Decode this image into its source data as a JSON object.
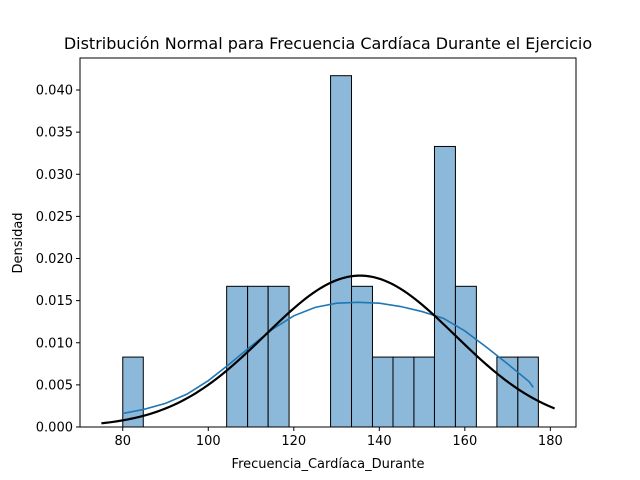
{
  "chart_data": {
    "type": "bar",
    "subtype": "histogram-with-density",
    "title": "Distribución Normal para Frecuencia Cardíaca Durante el Ejercicio",
    "xlabel": "Frecuencia_Cardíaca_Durante",
    "ylabel": "Densidad",
    "xlim": [
      70,
      186
    ],
    "ylim": [
      0,
      0.0438
    ],
    "xticks": [
      80,
      100,
      120,
      140,
      160,
      180
    ],
    "yticks": [
      0.0,
      0.005,
      0.01,
      0.015,
      0.02,
      0.025,
      0.03,
      0.035,
      0.04
    ],
    "ytick_labels": [
      "0.000",
      "0.005",
      "0.010",
      "0.015",
      "0.020",
      "0.025",
      "0.030",
      "0.035",
      "0.040"
    ],
    "grid": false,
    "colors": {
      "bar_fill": "#8cb8d9",
      "bar_edge": "#000000",
      "kde_line": "#1f77b4",
      "normal_line": "#000000"
    },
    "bins": [
      {
        "x0": 80.0,
        "x1": 84.8,
        "density": 0.0083
      },
      {
        "x0": 104.3,
        "x1": 109.2,
        "density": 0.0167
      },
      {
        "x0": 109.2,
        "x1": 114.0,
        "density": 0.0167
      },
      {
        "x0": 114.0,
        "x1": 118.9,
        "density": 0.0167
      },
      {
        "x0": 128.6,
        "x1": 133.5,
        "density": 0.0417
      },
      {
        "x0": 133.5,
        "x1": 138.4,
        "density": 0.0167
      },
      {
        "x0": 138.4,
        "x1": 143.2,
        "density": 0.0083
      },
      {
        "x0": 143.2,
        "x1": 148.1,
        "density": 0.0083
      },
      {
        "x0": 148.1,
        "x1": 152.9,
        "density": 0.0083
      },
      {
        "x0": 152.9,
        "x1": 157.8,
        "density": 0.0333
      },
      {
        "x0": 157.8,
        "x1": 162.7,
        "density": 0.0167
      },
      {
        "x0": 167.5,
        "x1": 172.4,
        "density": 0.0083
      },
      {
        "x0": 172.4,
        "x1": 177.2,
        "density": 0.0083
      }
    ],
    "series": [
      {
        "kind": "kde",
        "x": [
          80,
          85,
          90,
          95,
          100,
          105,
          110,
          115,
          120,
          125,
          130,
          135,
          140,
          145,
          150,
          155,
          160,
          165,
          170,
          175,
          176
        ],
        "y": [
          0.0016,
          0.0021,
          0.0028,
          0.0039,
          0.0055,
          0.0075,
          0.0096,
          0.0116,
          0.0132,
          0.0142,
          0.0147,
          0.0148,
          0.0147,
          0.0143,
          0.0137,
          0.0129,
          0.0114,
          0.0095,
          0.0075,
          0.0054,
          0.0047
        ]
      },
      {
        "kind": "normal-pdf",
        "mean": 135.5,
        "std": 22.2,
        "x_range": [
          75,
          181
        ]
      }
    ]
  }
}
